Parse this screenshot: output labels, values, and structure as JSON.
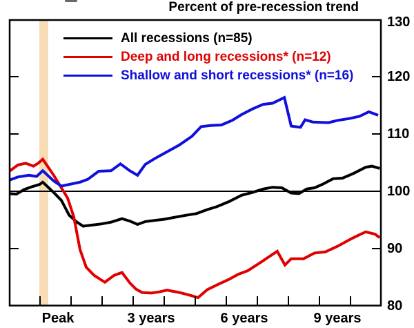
{
  "chart_data": {
    "type": "line",
    "title": "Percent of pre-recession trend",
    "y_axis": {
      "side": "right",
      "min": 80,
      "max": 130,
      "tick_labels": [
        130,
        120,
        110,
        100,
        90,
        80
      ]
    },
    "x_axis": {
      "tick_labels": [
        "Peak",
        "3 years",
        "6 years",
        "9 years"
      ],
      "minor_tick_every_years": 1,
      "range_years_relative_to_peak": [
        -1.1,
        10.9
      ]
    },
    "reference_line_y": 100,
    "peak_band": {
      "color": "#f7dcb6",
      "x_start_years": -0.12,
      "x_end_years": 0.18
    },
    "series": [
      {
        "name": "All recessions (n=85)",
        "color": "#000000",
        "points": [
          [
            -1.1,
            99.6
          ],
          [
            -0.85,
            99.5
          ],
          [
            -0.6,
            100.3
          ],
          [
            -0.35,
            100.8
          ],
          [
            -0.1,
            101.2
          ],
          [
            0,
            101.6
          ],
          [
            0.35,
            99.8
          ],
          [
            0.6,
            98.4
          ],
          [
            0.85,
            95.8
          ],
          [
            1.1,
            94.6
          ],
          [
            1.3,
            93.9
          ],
          [
            1.6,
            94.1
          ],
          [
            1.9,
            94.3
          ],
          [
            2.2,
            94.6
          ],
          [
            2.55,
            95.2
          ],
          [
            2.8,
            94.8
          ],
          [
            3.05,
            94.2
          ],
          [
            3.3,
            94.7
          ],
          [
            3.6,
            94.9
          ],
          [
            3.9,
            95.1
          ],
          [
            4.2,
            95.4
          ],
          [
            4.6,
            95.8
          ],
          [
            4.95,
            96.1
          ],
          [
            5.3,
            96.8
          ],
          [
            5.6,
            97.3
          ],
          [
            6,
            98.2
          ],
          [
            6.4,
            99.3
          ],
          [
            6.75,
            99.8
          ],
          [
            7.1,
            100.4
          ],
          [
            7.4,
            100.7
          ],
          [
            7.7,
            100.6
          ],
          [
            8,
            99.7
          ],
          [
            8.25,
            99.6
          ],
          [
            8.5,
            100.4
          ],
          [
            8.75,
            100.6
          ],
          [
            9,
            101.2
          ],
          [
            9.35,
            102.2
          ],
          [
            9.65,
            102.3
          ],
          [
            10,
            103.1
          ],
          [
            10.4,
            104.2
          ],
          [
            10.6,
            104.4
          ],
          [
            10.85,
            104
          ]
        ]
      },
      {
        "name": "Deep and long recessions* (n=12)",
        "color": "#e00000",
        "points": [
          [
            -1.1,
            103.4
          ],
          [
            -0.8,
            104.6
          ],
          [
            -0.55,
            104.9
          ],
          [
            -0.3,
            104.4
          ],
          [
            -0.15,
            104.9
          ],
          [
            0,
            105.6
          ],
          [
            0.35,
            102.8
          ],
          [
            0.6,
            100.6
          ],
          [
            0.8,
            98.8
          ],
          [
            1,
            95.5
          ],
          [
            1.2,
            89.8
          ],
          [
            1.4,
            86.7
          ],
          [
            1.65,
            85.3
          ],
          [
            1.85,
            84.6
          ],
          [
            2,
            84.1
          ],
          [
            2.3,
            85.3
          ],
          [
            2.55,
            85.8
          ],
          [
            2.8,
            84
          ],
          [
            3,
            82.9
          ],
          [
            3.2,
            82.3
          ],
          [
            3.5,
            82.2
          ],
          [
            3.75,
            82.4
          ],
          [
            4,
            82.7
          ],
          [
            4.4,
            82.3
          ],
          [
            4.75,
            81.8
          ],
          [
            5,
            81.4
          ],
          [
            5.3,
            82.8
          ],
          [
            5.6,
            83.6
          ],
          [
            6,
            84.6
          ],
          [
            6.3,
            85.5
          ],
          [
            6.6,
            86.1
          ],
          [
            7,
            87.5
          ],
          [
            7.3,
            88.6
          ],
          [
            7.55,
            89.5
          ],
          [
            7.8,
            87.1
          ],
          [
            8,
            88.2
          ],
          [
            8.4,
            88.2
          ],
          [
            8.75,
            89.2
          ],
          [
            9.1,
            89.4
          ],
          [
            9.5,
            90.4
          ],
          [
            9.9,
            91.6
          ],
          [
            10.2,
            92.4
          ],
          [
            10.4,
            92.9
          ],
          [
            10.7,
            92.5
          ],
          [
            10.85,
            91.9
          ]
        ]
      },
      {
        "name": "Shallow and short recessions* (n=16)",
        "color": "#1010dc",
        "points": [
          [
            -1.1,
            101.9
          ],
          [
            -0.8,
            102.5
          ],
          [
            -0.45,
            102.8
          ],
          [
            -0.2,
            102.6
          ],
          [
            0,
            103.6
          ],
          [
            0.35,
            101.8
          ],
          [
            0.6,
            100.9
          ],
          [
            0.85,
            101.2
          ],
          [
            1.2,
            101.6
          ],
          [
            1.45,
            102.1
          ],
          [
            1.8,
            103.5
          ],
          [
            2.2,
            103.6
          ],
          [
            2.5,
            104.8
          ],
          [
            2.8,
            103.6
          ],
          [
            3.05,
            102.8
          ],
          [
            3.3,
            104.7
          ],
          [
            3.6,
            105.7
          ],
          [
            4,
            106.9
          ],
          [
            4.4,
            108.1
          ],
          [
            4.8,
            109.6
          ],
          [
            5.1,
            111.3
          ],
          [
            5.4,
            111.5
          ],
          [
            5.75,
            111.6
          ],
          [
            6.1,
            112.4
          ],
          [
            6.4,
            113.4
          ],
          [
            6.75,
            114.4
          ],
          [
            7.1,
            115.2
          ],
          [
            7.4,
            115.4
          ],
          [
            7.78,
            116.4
          ],
          [
            8,
            111.4
          ],
          [
            8.3,
            111.2
          ],
          [
            8.45,
            112.5
          ],
          [
            8.7,
            112.1
          ],
          [
            9.2,
            112
          ],
          [
            9.5,
            112.4
          ],
          [
            9.85,
            112.7
          ],
          [
            10.2,
            113.1
          ],
          [
            10.5,
            113.9
          ],
          [
            10.8,
            113.3
          ]
        ]
      }
    ],
    "legend_position": "top-left-inside"
  }
}
